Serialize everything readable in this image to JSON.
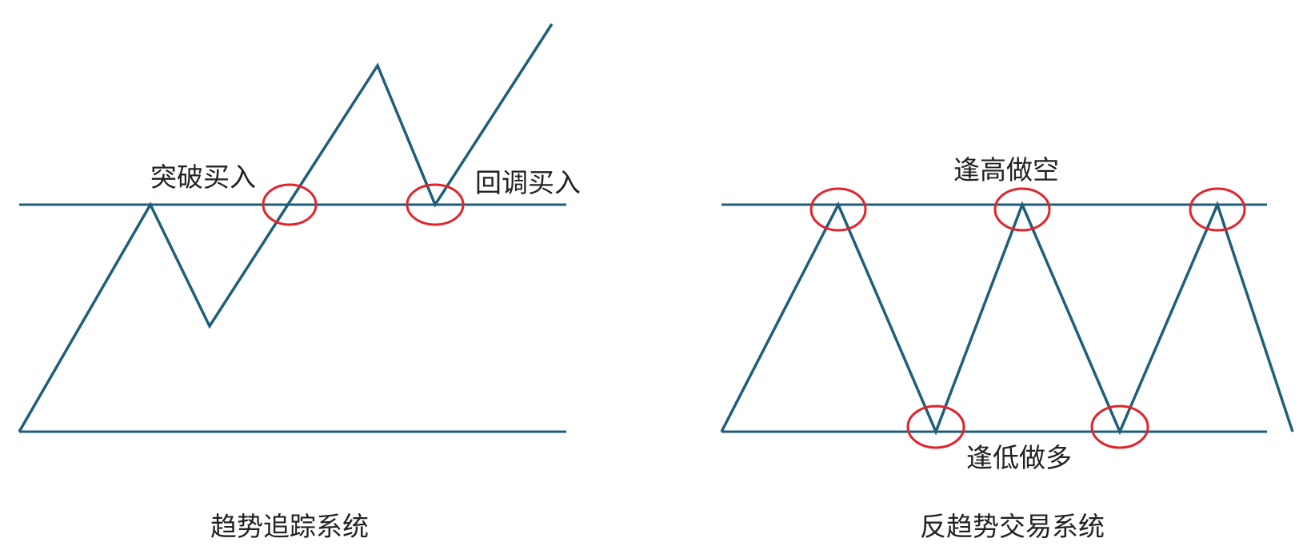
{
  "left_diagram": {
    "caption": "趋势追踪系统",
    "label_breakout": "突破买入",
    "label_pullback": "回调买入"
  },
  "right_diagram": {
    "caption": "反趋势交易系统",
    "label_top": "逢高做空",
    "label_bottom": "逢低做多"
  },
  "colors": {
    "line": "#1f5f7a",
    "marker": "#e0242c",
    "text": "#222222"
  }
}
